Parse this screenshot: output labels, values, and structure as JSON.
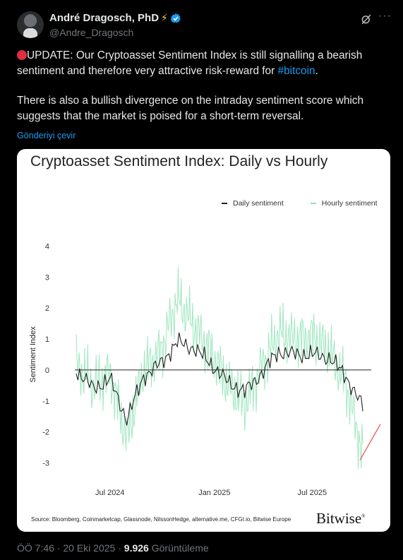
{
  "author": {
    "name": "André Dragosch, PhD",
    "handle": "@Andre_Dragosch"
  },
  "tweet": {
    "paragraph1_main": "UPDATE: Our Cryptoasset Sentiment Index is still signalling a bearish sentiment and therefore very attractive risk-reward for ",
    "hashtag": "#bitcoin",
    "paragraph1_end": ".",
    "paragraph2": "There is also a bullish divergence on the intraday sentiment score which suggests that the market is poised for a short-term reversal.",
    "translate_link": "Gönderiyi çevir"
  },
  "card": {
    "title": "Cryptoasset Sentiment Index: Daily vs Hourly",
    "source": "Source: Bloomberg, Coinmarketcap, Glassnode, NilssonHedge, alternative.me, CFGI.io, Bitwise Europe",
    "brand": "Bitwise",
    "brand_mark": "®"
  },
  "chart_data": {
    "type": "line",
    "title": "Cryptoasset Sentiment Index: Daily vs Hourly",
    "ylabel": "Sentiment Index",
    "ylim": [
      -3.4,
      4.4
    ],
    "yticks": [
      -3,
      -2,
      -1,
      0,
      1,
      2,
      3,
      4
    ],
    "x_ticks": [
      "Jul 2024",
      "Jan 2025",
      "Jul 2025"
    ],
    "legend_placement": "top-right",
    "x": [
      "2024-05",
      "2024-06",
      "2024-07",
      "2024-08",
      "2024-09",
      "2024-10",
      "2024-11",
      "2024-12",
      "2025-01",
      "2025-02",
      "2025-03",
      "2025-04",
      "2025-05",
      "2025-06",
      "2025-07",
      "2025-08",
      "2025-09",
      "2025-10"
    ],
    "series": [
      {
        "name": "Daily sentiment",
        "color": "#222222",
        "values": [
          0.0,
          -0.6,
          -0.3,
          -1.6,
          -0.2,
          0.2,
          0.9,
          0.7,
          0.2,
          -0.4,
          -0.7,
          -0.1,
          0.6,
          0.5,
          0.5,
          0.4,
          -0.2,
          -1.2
        ]
      },
      {
        "name": "Hourly sentiment",
        "color": "#8fe3b5",
        "values": [
          0.2,
          -0.5,
          -0.1,
          -2.2,
          0.0,
          0.6,
          2.3,
          1.4,
          0.6,
          -0.5,
          -1.1,
          0.1,
          1.2,
          1.0,
          1.1,
          0.6,
          -0.4,
          -2.7
        ]
      }
    ],
    "annotation": {
      "type": "arrow",
      "color": "#e05050",
      "x": [
        "2025-10",
        "2025-10"
      ],
      "y": [
        -2.5,
        -1.75
      ]
    }
  },
  "footer": {
    "time": "ÖÖ 7:46",
    "date": "20 Eki 2025",
    "views_count": "9.926",
    "views_label": "Görüntüleme"
  },
  "colors": {
    "background": "#000000",
    "link": "#1d9bf0",
    "muted": "#71767b",
    "verified": "#1d9bf0"
  }
}
